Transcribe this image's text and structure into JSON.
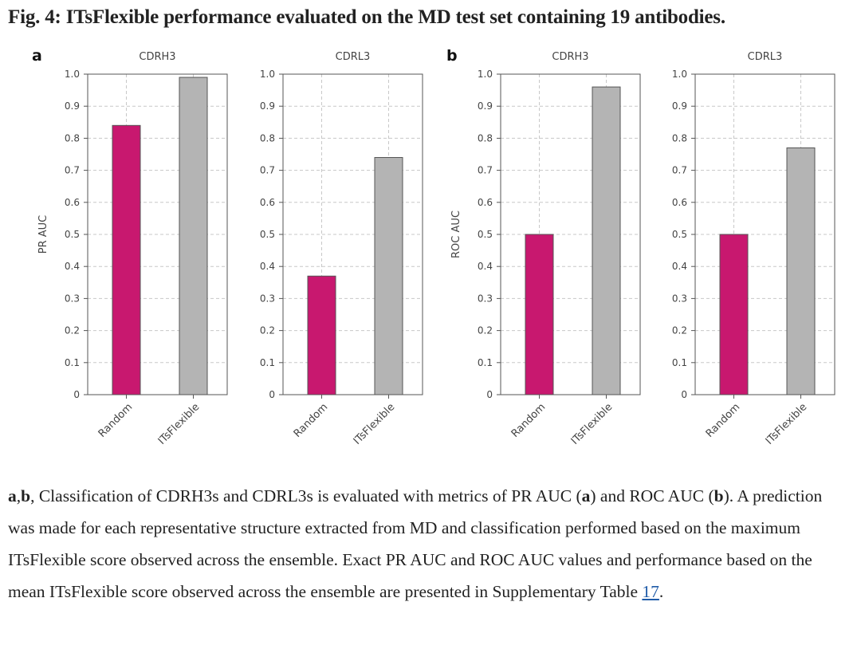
{
  "figure": {
    "title": "Fig. 4: ITsFlexible performance evaluated on the MD test set containing 19 antibodies.",
    "panel_labels": [
      "a",
      "b"
    ]
  },
  "colors": {
    "random": "#c8186f",
    "itsflexible": "#b4b4b4"
  },
  "chart_data": [
    {
      "type": "bar",
      "panel": "a",
      "title": "CDRH3",
      "ylabel": "PR AUC",
      "categories": [
        "Random",
        "ITsFlexible"
      ],
      "values": [
        0.84,
        0.99
      ],
      "ylim": [
        0,
        1.0
      ],
      "ticks": [
        "0",
        "0.1",
        "0.2",
        "0.3",
        "0.4",
        "0.5",
        "0.6",
        "0.7",
        "0.8",
        "0.9",
        "1.0"
      ],
      "grid": true
    },
    {
      "type": "bar",
      "panel": "a",
      "title": "CDRL3",
      "ylabel": "",
      "categories": [
        "Random",
        "ITsFlexible"
      ],
      "values": [
        0.37,
        0.74
      ],
      "ylim": [
        0,
        1.0
      ],
      "ticks": [
        "0",
        "0.1",
        "0.2",
        "0.3",
        "0.4",
        "0.5",
        "0.6",
        "0.7",
        "0.8",
        "0.9",
        "1.0"
      ],
      "grid": true
    },
    {
      "type": "bar",
      "panel": "b",
      "title": "CDRH3",
      "ylabel": "ROC AUC",
      "categories": [
        "Random",
        "ITsFlexible"
      ],
      "values": [
        0.5,
        0.96
      ],
      "ylim": [
        0,
        1.0
      ],
      "ticks": [
        "0",
        "0.1",
        "0.2",
        "0.3",
        "0.4",
        "0.5",
        "0.6",
        "0.7",
        "0.8",
        "0.9",
        "1.0"
      ],
      "grid": true
    },
    {
      "type": "bar",
      "panel": "b",
      "title": "CDRL3",
      "ylabel": "",
      "categories": [
        "Random",
        "ITsFlexible"
      ],
      "values": [
        0.5,
        0.77
      ],
      "ylim": [
        0,
        1.0
      ],
      "ticks": [
        "0",
        "0.1",
        "0.2",
        "0.3",
        "0.4",
        "0.5",
        "0.6",
        "0.7",
        "0.8",
        "0.9",
        "1.0"
      ],
      "grid": true
    }
  ],
  "caption": {
    "a": "a",
    "comma": ",",
    "b": "b",
    "t1": ", Classification of CDRH3s and CDRL3s is evaluated with metrics of PR AUC (",
    "a2": "a",
    "t2": ") and ROC AUC (",
    "b2": "b",
    "t3": "). A prediction was made for each representative structure extracted from MD and classification performed based on the maximum ITsFlexible score observed across the ensemble. Exact PR AUC and ROC AUC values and performance based on the mean ITsFlexible score observed across the ensemble are presented in Supplementary Table ",
    "link": "17",
    "t4": "."
  }
}
